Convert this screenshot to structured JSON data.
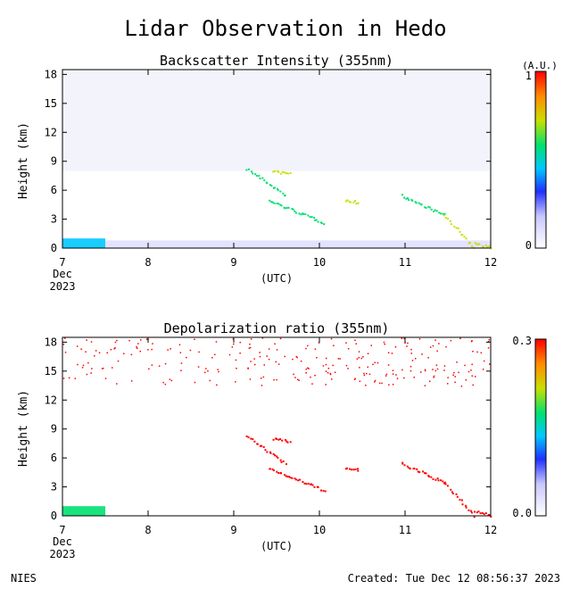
{
  "title": "Lidar Observation in Hedo",
  "footer": {
    "left": "NIES",
    "right": "Created: Tue Dec 12 08:56:37 2023"
  },
  "colors": {
    "background": "#ffffff",
    "frame": "#000000",
    "backscatter_scale": [
      "#ffffff",
      "#c8c8ff",
      "#2030ff",
      "#00c8ff",
      "#00e070",
      "#c8e000",
      "#ff8c00",
      "#ff0000"
    ],
    "depol_scale": [
      "#ffffff",
      "#c8c8ff",
      "#2030ff",
      "#00c8ff",
      "#00e070",
      "#c8e000",
      "#ff8c00",
      "#ff0000"
    ]
  },
  "chart_data": [
    {
      "type": "heatmap",
      "title": "Backscatter Intensity (355nm)",
      "xlabel": "(UTC)",
      "ylabel": "Height (km)",
      "xlim": [
        7,
        12
      ],
      "ylim": [
        0,
        18.5
      ],
      "x_ticks": [
        "7",
        "8",
        "9",
        "10",
        "11",
        "12"
      ],
      "x_tick_sub": [
        "Dec",
        "2023"
      ],
      "y_ticks": [
        "0",
        "3",
        "6",
        "9",
        "12",
        "15",
        "18"
      ],
      "y_tick_values": [
        0,
        3,
        6,
        9,
        12,
        15,
        18
      ],
      "colorbar": {
        "unit": "(A.U.)",
        "min_label": "0",
        "max_label": "1",
        "range": [
          0,
          1
        ]
      },
      "features": [
        {
          "kind": "surface_layer",
          "x": [
            7.0,
            7.5
          ],
          "y": [
            0,
            1.0
          ],
          "value": 0.45
        },
        {
          "kind": "boundary_layer",
          "x": [
            7.5,
            12.0
          ],
          "y": [
            0,
            0.8
          ],
          "value": 0.15
        },
        {
          "kind": "cloud",
          "x": [
            9.15,
            9.6
          ],
          "y": [
            5.5,
            8.3
          ],
          "value": 0.6
        },
        {
          "kind": "cloud",
          "x": [
            9.45,
            9.65
          ],
          "y": [
            7.8,
            8.0
          ],
          "value": 0.7
        },
        {
          "kind": "cloud",
          "x": [
            9.4,
            10.05
          ],
          "y": [
            2.7,
            5.0
          ],
          "value": 0.6
        },
        {
          "kind": "cloud",
          "x": [
            10.3,
            10.45
          ],
          "y": [
            4.8,
            5.0
          ],
          "value": 0.7
        },
        {
          "kind": "cloud",
          "x": [
            10.95,
            11.45
          ],
          "y": [
            3.5,
            5.5
          ],
          "value": 0.6
        },
        {
          "kind": "cloud",
          "x": [
            11.45,
            11.8
          ],
          "y": [
            0.1,
            3.5
          ],
          "value": 0.65
        },
        {
          "kind": "cloud",
          "x": [
            11.8,
            12.0
          ],
          "y": [
            0.1,
            0.6
          ],
          "value": 0.75
        }
      ]
    },
    {
      "type": "heatmap",
      "title": "Depolarization ratio (355nm)",
      "xlabel": "(UTC)",
      "ylabel": "Height (km)",
      "xlim": [
        7,
        12
      ],
      "ylim": [
        0,
        18.5
      ],
      "x_ticks": [
        "7",
        "8",
        "9",
        "10",
        "11",
        "12"
      ],
      "x_tick_sub": [
        "Dec",
        "2023"
      ],
      "y_ticks": [
        "0",
        "3",
        "6",
        "9",
        "12",
        "15",
        "18"
      ],
      "y_tick_values": [
        0,
        3,
        6,
        9,
        12,
        15,
        18
      ],
      "colorbar": {
        "unit": "",
        "min_label": "0.0",
        "max_label": "0.3",
        "range": [
          0,
          0.3
        ]
      },
      "features": [
        {
          "kind": "surface_layer",
          "x": [
            7.0,
            7.5
          ],
          "y": [
            0,
            1.0
          ],
          "value": 0.15
        },
        {
          "kind": "noise_high",
          "x": [
            7.0,
            12.0
          ],
          "y": [
            13.5,
            18.5
          ],
          "value": 0.3
        },
        {
          "kind": "cloud",
          "x": [
            9.15,
            9.6
          ],
          "y": [
            5.5,
            8.3
          ],
          "value": 0.3
        },
        {
          "kind": "cloud",
          "x": [
            9.45,
            9.65
          ],
          "y": [
            7.8,
            8.0
          ],
          "value": 0.3
        },
        {
          "kind": "cloud",
          "x": [
            9.4,
            10.05
          ],
          "y": [
            2.7,
            5.0
          ],
          "value": 0.3
        },
        {
          "kind": "cloud",
          "x": [
            10.3,
            10.45
          ],
          "y": [
            4.8,
            5.0
          ],
          "value": 0.3
        },
        {
          "kind": "cloud",
          "x": [
            10.95,
            11.45
          ],
          "y": [
            3.5,
            5.5
          ],
          "value": 0.3
        },
        {
          "kind": "cloud",
          "x": [
            11.45,
            11.8
          ],
          "y": [
            0.1,
            3.5
          ],
          "value": 0.3
        },
        {
          "kind": "cloud",
          "x": [
            11.8,
            12.0
          ],
          "y": [
            0.1,
            0.6
          ],
          "value": 0.3
        }
      ]
    }
  ]
}
